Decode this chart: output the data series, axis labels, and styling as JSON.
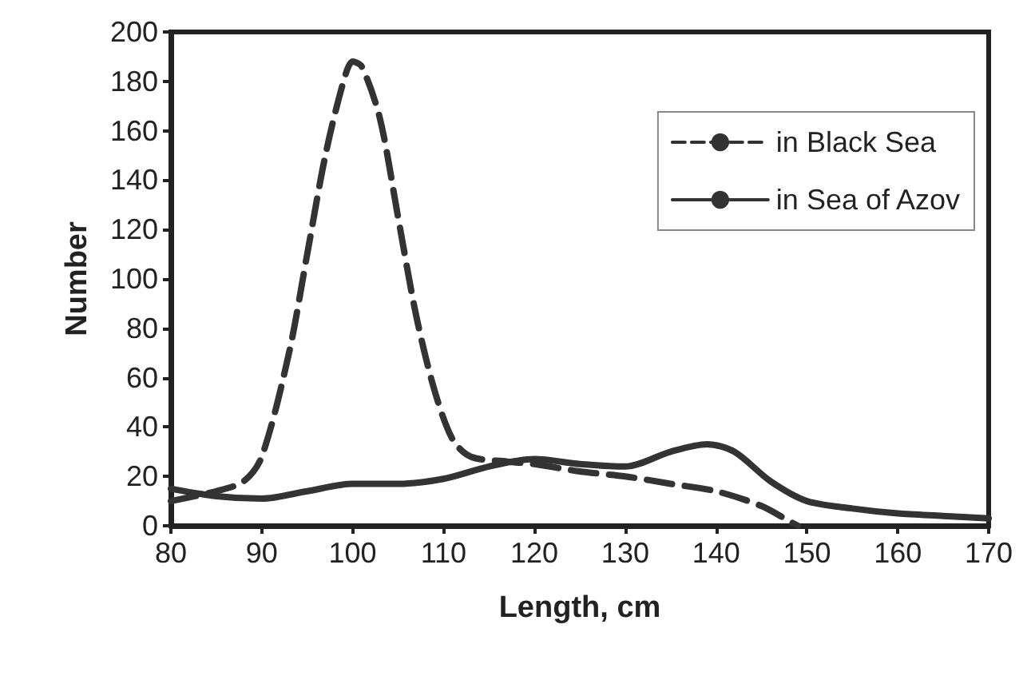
{
  "chart_data": {
    "type": "line",
    "xlabel": "Length, cm",
    "ylabel": "Number",
    "xlim": [
      80,
      170
    ],
    "xticks": [
      80,
      90,
      100,
      110,
      120,
      130,
      140,
      150,
      160,
      170
    ],
    "ylim": [
      0,
      200
    ],
    "yticks": [
      0,
      20,
      40,
      60,
      80,
      100,
      120,
      140,
      160,
      180,
      200
    ],
    "grid": false,
    "legend": "top right",
    "marker": "none",
    "series": [
      {
        "name": "in Black Sea",
        "color": "#333333",
        "line_style": "dashed",
        "x": [
          80,
          85,
          88,
          90,
          93,
          95,
          97,
          99,
          100,
          101,
          103,
          105,
          107,
          109,
          111,
          113,
          117,
          120,
          125,
          130,
          135,
          140,
          145,
          148,
          149
        ],
        "values": [
          10,
          14,
          18,
          28,
          70,
          110,
          150,
          180,
          188,
          186,
          165,
          125,
          85,
          55,
          35,
          28,
          26,
          25,
          22,
          20,
          17,
          14,
          8,
          2,
          0
        ]
      },
      {
        "name": "in Sea of Azov",
        "color": "#333333",
        "line_style": "solid",
        "x": [
          80,
          85,
          90,
          95,
          100,
          105,
          110,
          115,
          120,
          125,
          130,
          135,
          139,
          142,
          146,
          150,
          155,
          160,
          165,
          170
        ],
        "values": [
          15,
          12,
          11,
          14,
          17,
          17,
          19,
          24,
          27,
          25,
          24,
          30,
          33,
          30,
          18,
          10,
          7,
          5,
          4,
          3
        ]
      }
    ]
  }
}
